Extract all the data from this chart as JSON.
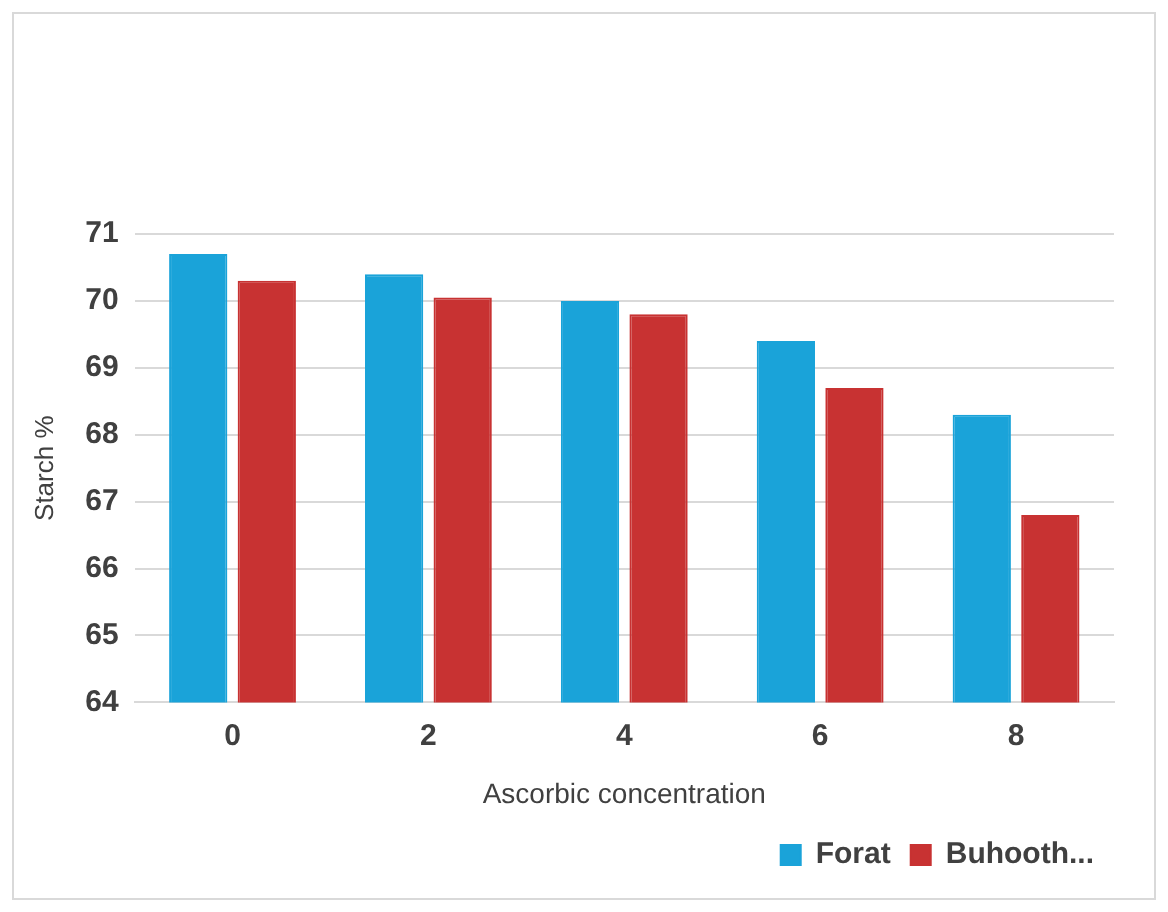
{
  "chart_data": {
    "type": "bar",
    "xlabel": "Ascorbic concentration",
    "ylabel": "Starch %",
    "categories": [
      "0",
      "2",
      "4",
      "6",
      "8"
    ],
    "series": [
      {
        "name": "Forat",
        "color": "#1aa3d9",
        "values": [
          70.7,
          70.4,
          70.0,
          69.4,
          68.3
        ]
      },
      {
        "name": "Buhooth...",
        "color": "#c83232",
        "values": [
          70.3,
          70.05,
          69.8,
          68.7,
          66.8
        ]
      }
    ],
    "ylim": [
      64,
      71
    ],
    "yticks": [
      64,
      65,
      66,
      67,
      68,
      69,
      70,
      71
    ],
    "grid": "y",
    "legend": "bottom right"
  }
}
